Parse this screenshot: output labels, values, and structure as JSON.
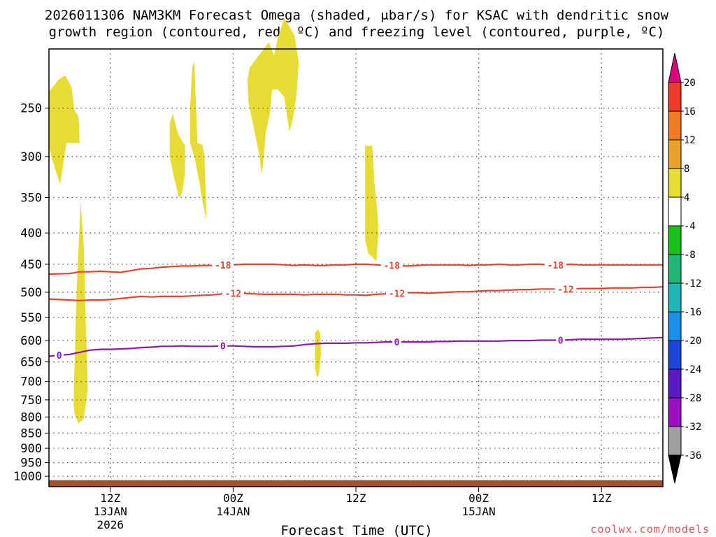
{
  "chart_data": {
    "type": "time-height",
    "title_line1": "2026011306 NAM3KM Forecast Omega (shaded, μbar/s) for KSAC with dendritic snow",
    "title_line2": "growth region (contoured, red, ºC) and freezing level (contoured, purple, ºC)",
    "xlabel": "Forecast Time (UTC)",
    "credit": "coolwx.com/models",
    "x_range_hours": [
      0,
      60
    ],
    "x_ticks": [
      {
        "h": 6,
        "line1": "12Z",
        "line2": "13JAN",
        "line3": "2026"
      },
      {
        "h": 18,
        "line1": "00Z",
        "line2": "14JAN",
        "line3": ""
      },
      {
        "h": 30,
        "line1": "12Z",
        "line2": "",
        "line3": ""
      },
      {
        "h": 42,
        "line1": "00Z",
        "line2": "15JAN",
        "line3": ""
      },
      {
        "h": 54,
        "line1": "12Z",
        "line2": "",
        "line3": ""
      }
    ],
    "y_range_hpa": [
      200,
      1040
    ],
    "y_ticks": [
      "250",
      "300",
      "350",
      "400",
      "450",
      "500",
      "550",
      "600",
      "650",
      "700",
      "750",
      "800",
      "850",
      "900",
      "950",
      "1000"
    ],
    "omega_regions": [
      {
        "label": "omega 4-8",
        "points": [
          [
            0,
            235
          ],
          [
            1,
            224
          ],
          [
            1.6,
            221
          ],
          [
            2.2,
            231
          ],
          [
            2.5,
            252
          ],
          [
            2.9,
            258
          ],
          [
            3,
            285
          ],
          [
            1.7,
            285
          ],
          [
            1.4,
            308
          ],
          [
            1.1,
            333
          ],
          [
            0.7,
            318
          ],
          [
            0.2,
            298
          ],
          [
            0,
            288
          ]
        ]
      },
      {
        "label": "omega 4-8",
        "points": [
          [
            2.4,
            760
          ],
          [
            2.7,
            500
          ],
          [
            3.1,
            355
          ],
          [
            3.4,
            420
          ],
          [
            3.6,
            560
          ],
          [
            3.8,
            720
          ],
          [
            3.4,
            805
          ],
          [
            2.9,
            820
          ],
          [
            2.5,
            790
          ]
        ]
      },
      {
        "label": "omega 4-8",
        "points": [
          [
            11.8,
            265
          ],
          [
            12.1,
            255
          ],
          [
            12.6,
            275
          ],
          [
            13.3,
            288
          ],
          [
            13.3,
            320
          ],
          [
            13.0,
            345
          ],
          [
            12.7,
            350
          ],
          [
            12.2,
            323
          ],
          [
            11.8,
            300
          ]
        ]
      },
      {
        "label": "omega 4-8",
        "points": [
          [
            13.8,
            250
          ],
          [
            14.0,
            214
          ],
          [
            14.2,
            210
          ],
          [
            14.4,
            255
          ],
          [
            14.5,
            285
          ],
          [
            15.0,
            287
          ],
          [
            15.2,
            298
          ],
          [
            15.4,
            380
          ],
          [
            15.0,
            355
          ],
          [
            14.7,
            330
          ],
          [
            14.2,
            300
          ],
          [
            13.8,
            285
          ]
        ]
      },
      {
        "label": "omega 4-8",
        "points": [
          [
            19.4,
            225
          ],
          [
            19.6,
            215
          ],
          [
            20.5,
            205
          ],
          [
            21.5,
            195
          ],
          [
            22.0,
            205
          ],
          [
            22.4,
            191
          ],
          [
            23.0,
            178
          ],
          [
            24.0,
            190
          ],
          [
            24.4,
            210
          ],
          [
            24.2,
            238
          ],
          [
            23.8,
            262
          ],
          [
            23.5,
            273
          ],
          [
            23.0,
            240
          ],
          [
            22.4,
            233
          ],
          [
            21.8,
            233
          ],
          [
            21.6,
            255
          ],
          [
            21.2,
            273
          ],
          [
            21.0,
            300
          ],
          [
            20.8,
            320
          ],
          [
            20.5,
            295
          ],
          [
            20.0,
            268
          ],
          [
            19.5,
            245
          ]
        ]
      },
      {
        "label": "omega 4-8",
        "points": [
          [
            26.0,
            582
          ],
          [
            26.3,
            575
          ],
          [
            26.5,
            582
          ],
          [
            26.6,
            630
          ],
          [
            26.4,
            678
          ],
          [
            26.2,
            690
          ],
          [
            26.0,
            665
          ]
        ]
      },
      {
        "label": "omega 4-8",
        "points": [
          [
            30.9,
            288
          ],
          [
            31.6,
            288
          ],
          [
            31.8,
            330
          ],
          [
            32.1,
            368
          ],
          [
            32.2,
            400
          ],
          [
            32.0,
            445
          ],
          [
            31.6,
            438
          ],
          [
            31.2,
            432
          ],
          [
            30.9,
            410
          ],
          [
            30.9,
            350
          ]
        ]
      }
    ],
    "contours": [
      {
        "name": "snow-growth-minus18",
        "label": "-18",
        "color": "#e8432e",
        "points": [
          [
            0,
            467
          ],
          [
            2,
            466
          ],
          [
            3,
            463
          ],
          [
            4,
            463
          ],
          [
            5,
            462
          ],
          [
            6,
            463
          ],
          [
            7,
            464
          ],
          [
            8,
            461
          ],
          [
            9,
            458
          ],
          [
            10,
            457
          ],
          [
            11,
            455
          ],
          [
            12,
            454
          ],
          [
            13,
            453
          ],
          [
            14,
            453
          ],
          [
            15,
            452
          ],
          [
            16,
            452
          ],
          [
            17,
            451
          ],
          [
            18,
            451
          ],
          [
            19,
            450
          ],
          [
            20,
            450
          ],
          [
            21,
            450
          ],
          [
            22,
            450
          ],
          [
            23,
            451
          ],
          [
            24,
            452
          ],
          [
            25,
            451
          ],
          [
            26,
            452
          ],
          [
            27,
            452
          ],
          [
            28,
            451
          ],
          [
            29,
            451
          ],
          [
            30,
            450
          ],
          [
            31,
            450
          ],
          [
            32,
            451
          ],
          [
            33,
            452
          ],
          [
            34,
            452
          ],
          [
            35,
            453
          ],
          [
            36,
            452
          ],
          [
            37,
            451
          ],
          [
            38,
            451
          ],
          [
            39,
            451
          ],
          [
            40,
            451
          ],
          [
            41,
            452
          ],
          [
            42,
            451
          ],
          [
            43,
            451
          ],
          [
            44,
            450
          ],
          [
            45,
            451
          ],
          [
            46,
            451
          ],
          [
            47,
            450
          ],
          [
            48,
            450
          ],
          [
            49,
            451
          ],
          [
            50,
            451
          ],
          [
            51,
            450
          ],
          [
            52,
            451
          ],
          [
            53,
            451
          ],
          [
            54,
            451
          ],
          [
            55,
            451
          ],
          [
            56,
            451
          ],
          [
            57,
            451
          ],
          [
            58,
            451
          ],
          [
            59,
            451
          ],
          [
            60,
            451
          ]
        ],
        "labels_at_hours": [
          17,
          33.5,
          49.5
        ]
      },
      {
        "name": "snow-growth-minus12",
        "label": "-12",
        "color": "#e8432e",
        "points": [
          [
            0,
            513
          ],
          [
            1,
            514
          ],
          [
            2,
            515
          ],
          [
            3,
            516
          ],
          [
            4,
            515
          ],
          [
            5,
            515
          ],
          [
            6,
            514
          ],
          [
            7,
            512
          ],
          [
            8,
            510
          ],
          [
            9,
            508
          ],
          [
            10,
            509
          ],
          [
            11,
            508
          ],
          [
            12,
            508
          ],
          [
            13,
            508
          ],
          [
            14,
            507
          ],
          [
            15,
            506
          ],
          [
            16,
            505
          ],
          [
            17,
            503
          ],
          [
            18,
            502
          ],
          [
            19,
            502
          ],
          [
            20,
            503
          ],
          [
            21,
            504
          ],
          [
            22,
            504
          ],
          [
            23,
            504
          ],
          [
            24,
            504
          ],
          [
            25,
            505
          ],
          [
            26,
            504
          ],
          [
            27,
            504
          ],
          [
            28,
            504
          ],
          [
            29,
            505
          ],
          [
            30,
            505
          ],
          [
            31,
            506
          ],
          [
            32,
            504
          ],
          [
            33,
            503
          ],
          [
            34,
            502
          ],
          [
            35,
            501
          ],
          [
            36,
            501
          ],
          [
            37,
            502
          ],
          [
            38,
            501
          ],
          [
            39,
            500
          ],
          [
            40,
            499
          ],
          [
            41,
            499
          ],
          [
            42,
            498
          ],
          [
            43,
            497
          ],
          [
            44,
            497
          ],
          [
            45,
            496
          ],
          [
            46,
            495
          ],
          [
            47,
            495
          ],
          [
            48,
            494
          ],
          [
            49,
            494
          ],
          [
            50,
            494
          ],
          [
            51,
            494
          ],
          [
            52,
            493
          ],
          [
            53,
            493
          ],
          [
            54,
            493
          ],
          [
            55,
            492
          ],
          [
            56,
            492
          ],
          [
            57,
            492
          ],
          [
            58,
            491
          ],
          [
            59,
            491
          ],
          [
            60,
            490
          ]
        ],
        "labels_at_hours": [
          18,
          34,
          50.5
        ]
      },
      {
        "name": "freezing-level-0",
        "label": "0",
        "color": "#8b1aab",
        "points": [
          [
            0,
            636
          ],
          [
            1,
            634
          ],
          [
            2,
            632
          ],
          [
            3,
            627
          ],
          [
            4,
            622
          ],
          [
            5,
            620
          ],
          [
            6,
            620
          ],
          [
            7,
            619
          ],
          [
            8,
            618
          ],
          [
            9,
            616
          ],
          [
            10,
            615
          ],
          [
            11,
            613
          ],
          [
            12,
            613
          ],
          [
            13,
            612
          ],
          [
            14,
            613
          ],
          [
            15,
            613
          ],
          [
            16,
            613
          ],
          [
            17,
            612
          ],
          [
            18,
            612
          ],
          [
            19,
            613
          ],
          [
            20,
            614
          ],
          [
            21,
            614
          ],
          [
            22,
            614
          ],
          [
            23,
            613
          ],
          [
            24,
            612
          ],
          [
            25,
            609
          ],
          [
            26,
            607
          ],
          [
            27,
            606
          ],
          [
            28,
            606
          ],
          [
            29,
            606
          ],
          [
            30,
            605
          ],
          [
            31,
            605
          ],
          [
            32,
            604
          ],
          [
            33,
            603
          ],
          [
            34,
            603
          ],
          [
            35,
            603
          ],
          [
            36,
            603
          ],
          [
            37,
            603
          ],
          [
            38,
            602
          ],
          [
            39,
            602
          ],
          [
            40,
            601
          ],
          [
            41,
            601
          ],
          [
            42,
            601
          ],
          [
            43,
            601
          ],
          [
            44,
            601
          ],
          [
            45,
            600
          ],
          [
            46,
            600
          ],
          [
            47,
            600
          ],
          [
            48,
            599
          ],
          [
            49,
            599
          ],
          [
            50,
            599
          ],
          [
            51,
            598
          ],
          [
            52,
            597
          ],
          [
            53,
            597
          ],
          [
            54,
            597
          ],
          [
            55,
            597
          ],
          [
            56,
            597
          ],
          [
            57,
            596
          ],
          [
            58,
            595
          ],
          [
            59,
            594
          ],
          [
            60,
            593
          ]
        ],
        "labels_at_hours": [
          1,
          17.0,
          34.0,
          50.0
        ]
      }
    ],
    "surface_band_hpa": [
      1015,
      1040
    ],
    "colorbar": {
      "labels": [
        "20",
        "16",
        "12",
        "8",
        "4",
        "-4",
        "-8",
        "-12",
        "-16",
        "-20",
        "-24",
        "-28",
        "-32",
        "-36"
      ],
      "top_tip_color": "#e0007b",
      "bottom_tip_color": "#000000",
      "bins": [
        {
          "range": "16-20",
          "color": "#ef3b2c"
        },
        {
          "range": "12-16",
          "color": "#f07b25"
        },
        {
          "range": "8-12",
          "color": "#e8a22a"
        },
        {
          "range": "4-8",
          "color": "#e6dc33"
        },
        {
          "range": "-4-4",
          "color": "#ffffff"
        },
        {
          "range": "-8--4",
          "color": "#17c21c"
        },
        {
          "range": "-12--8",
          "color": "#22b573"
        },
        {
          "range": "-16--12",
          "color": "#1eb6b8"
        },
        {
          "range": "-20--16",
          "color": "#1890e8"
        },
        {
          "range": "-24--20",
          "color": "#1c46d6"
        },
        {
          "range": "-28--24",
          "color": "#5a1ac2"
        },
        {
          "range": "-32--28",
          "color": "#9a10c0"
        },
        {
          "range": "-36--32",
          "color": "#a0a0a0"
        }
      ]
    },
    "colors": {
      "omega_fill": "#e6dc33",
      "snow_growth": "#e8432e",
      "freezing_level": "#8b1aab",
      "surface_band": "#a0522d",
      "credit": "#d9534f"
    }
  }
}
